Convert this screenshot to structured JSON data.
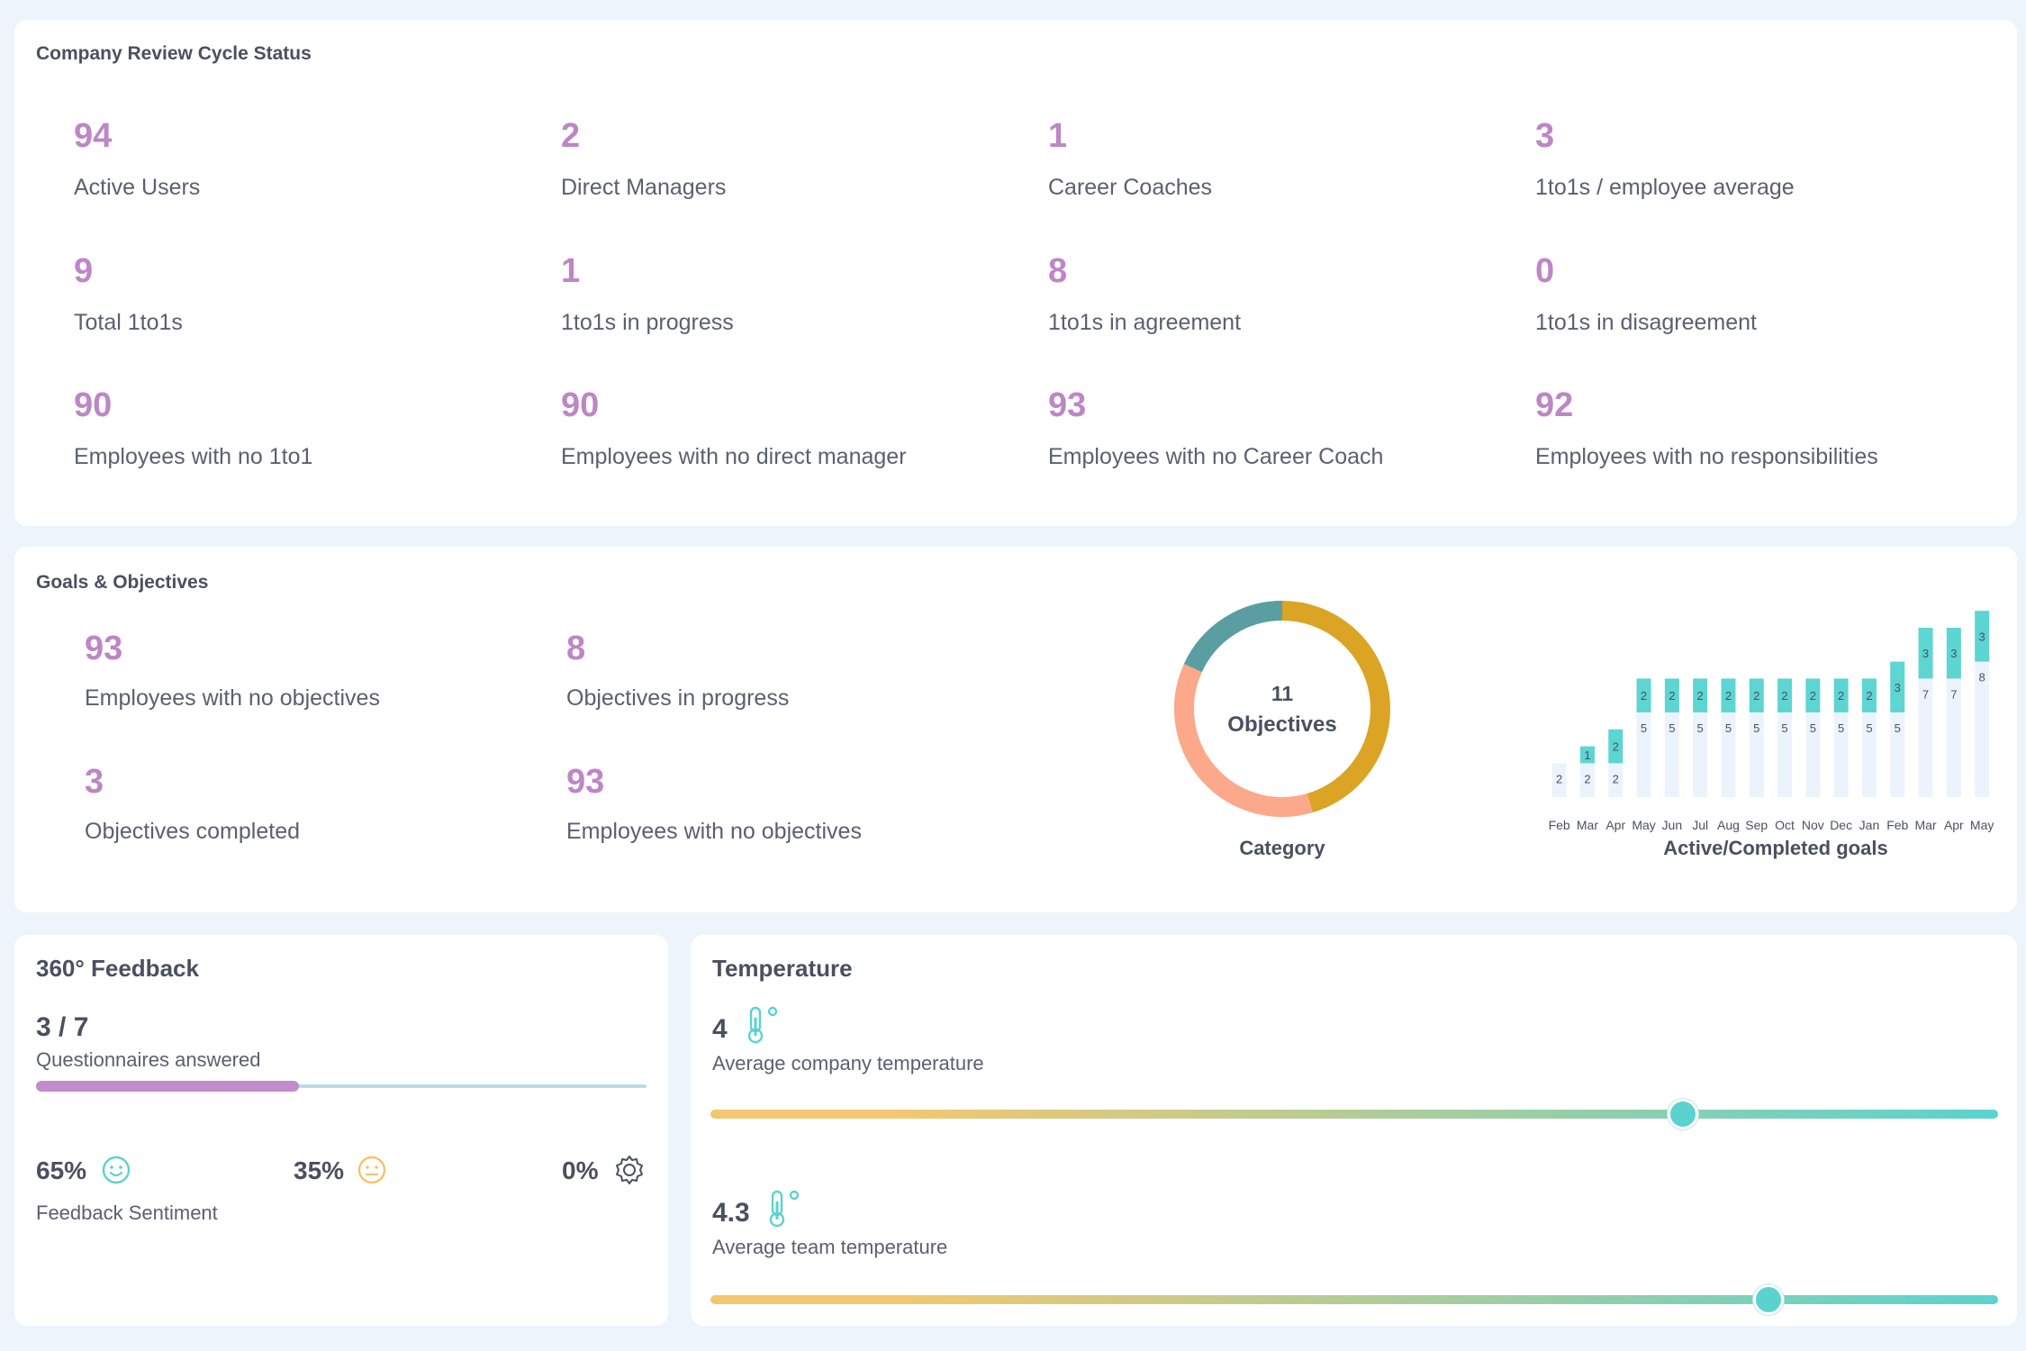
{
  "review": {
    "title": "Company Review Cycle Status",
    "stats": [
      {
        "value": "94",
        "label": "Active Users"
      },
      {
        "value": "2",
        "label": "Direct Managers"
      },
      {
        "value": "1",
        "label": "Career Coaches"
      },
      {
        "value": "3",
        "label": "1to1s / employee average"
      },
      {
        "value": "9",
        "label": "Total 1to1s"
      },
      {
        "value": "1",
        "label": "1to1s in progress"
      },
      {
        "value": "8",
        "label": "1to1s in agreement"
      },
      {
        "value": "0",
        "label": "1to1s in disagreement"
      },
      {
        "value": "90",
        "label": "Employees with no 1to1"
      },
      {
        "value": "90",
        "label": "Employees with no direct manager"
      },
      {
        "value": "93",
        "label": "Employees with no Career Coach"
      },
      {
        "value": "92",
        "label": "Employees with no responsibilities"
      }
    ]
  },
  "goals": {
    "title": "Goals & Objectives",
    "stats": [
      {
        "value": "93",
        "label": "Employees with no objectives"
      },
      {
        "value": "8",
        "label": "Objectives in progress"
      },
      {
        "value": "3",
        "label": "Objectives completed"
      },
      {
        "value": "93",
        "label": "Employees with no objectives"
      }
    ],
    "donut": {
      "center_value": "11",
      "center_label": "Objectives",
      "caption": "Category",
      "segments": [
        {
          "value": 5,
          "color": "#dba424"
        },
        {
          "value": 4,
          "color": "#fba98a"
        },
        {
          "value": 2,
          "color": "#5b9ea2"
        }
      ]
    }
  },
  "chart_data": {
    "type": "bar",
    "title": "Active/Completed goals",
    "categories": [
      "Feb",
      "Mar",
      "Apr",
      "May",
      "Jun",
      "Jul",
      "Aug",
      "Sep",
      "Oct",
      "Nov",
      "Dec",
      "Jan",
      "Feb",
      "Mar",
      "Apr",
      "May"
    ],
    "series": [
      {
        "values": [
          2,
          2,
          2,
          5,
          5,
          5,
          5,
          5,
          5,
          5,
          5,
          5,
          5,
          7,
          7,
          8
        ],
        "color": "#edf3fc"
      },
      {
        "values": [
          0,
          1,
          2,
          2,
          2,
          2,
          2,
          2,
          2,
          2,
          2,
          2,
          3,
          3,
          3,
          3
        ],
        "color": "#5dd5d2"
      }
    ],
    "stacked": true,
    "ylim": [
      0,
      11
    ]
  },
  "feedback": {
    "title": "360° Feedback",
    "count": "3 / 7",
    "count_label": "Questionnaires answered",
    "progress": 0.43,
    "sentiment": [
      {
        "value": "65%",
        "icon": "smile-icon"
      },
      {
        "value": "35%",
        "icon": "neutral-face-icon"
      },
      {
        "value": "0%",
        "icon": "gear-icon"
      }
    ],
    "sentiment_label": "Feedback Sentiment",
    "colors": {
      "progress": "#c18ccb",
      "track": "#b9dde9"
    }
  },
  "temperature": {
    "title": "Temperature",
    "company": {
      "value": "4",
      "label": "Average company temperature",
      "level": 0.755
    },
    "team": {
      "value": "4.3",
      "label": "Average team temperature",
      "level": 0.822
    },
    "icon": "thermometer-icon",
    "colors": {
      "start": "#f2c770",
      "end": "#5ad3cf"
    }
  }
}
